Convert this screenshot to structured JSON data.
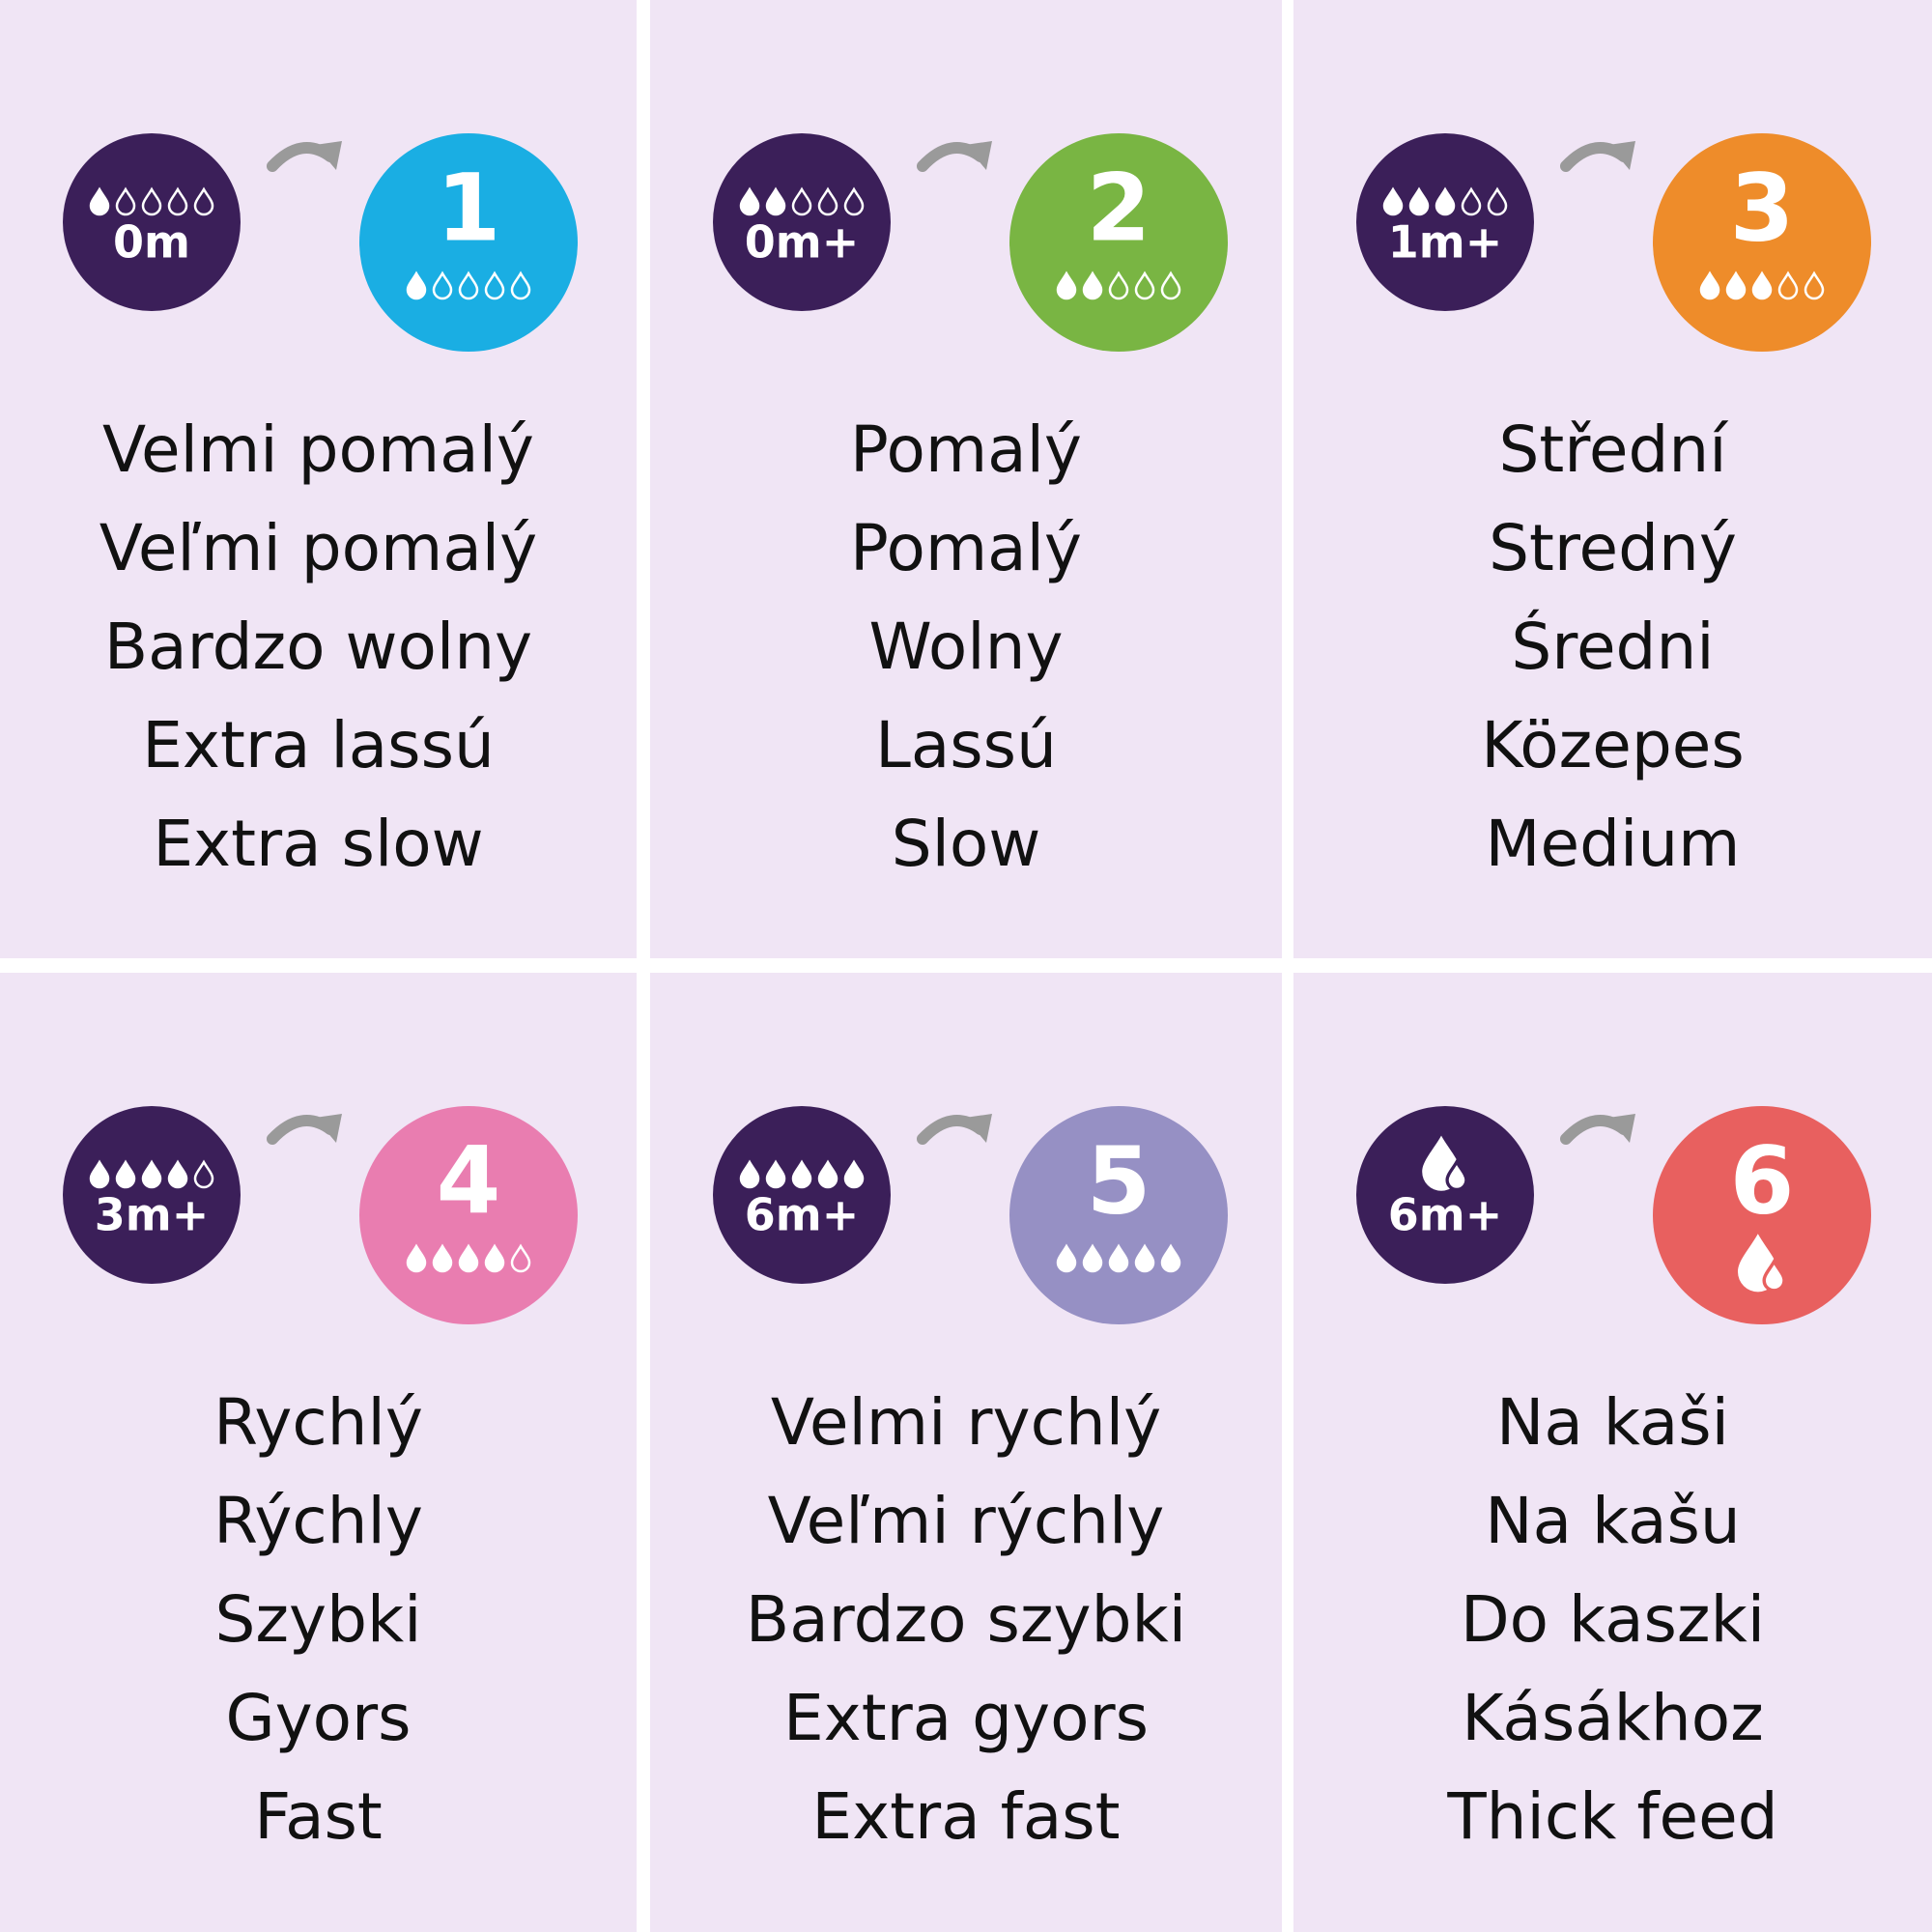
{
  "panels": [
    {
      "age": "0m",
      "number": "1",
      "color": "#1aaee3",
      "labels": [
        "Velmi pomalý",
        "Veľmi pomalý",
        "Bardzo wolny",
        "Extra lassú",
        "Extra slow"
      ]
    },
    {
      "age": "0m+",
      "number": "2",
      "color": "#79b543",
      "labels": [
        "Pomalý",
        "Pomalý",
        "Wolny",
        "Lassú",
        "Slow"
      ]
    },
    {
      "age": "1m+",
      "number": "3",
      "color": "#ee8c2a",
      "labels": [
        "Střední",
        "Stredný",
        "Średni",
        "Közepes",
        "Medium"
      ]
    },
    {
      "age": "3m+",
      "number": "4",
      "color": "#e97db0",
      "labels": [
        "Rychlý",
        "Rýchly",
        "Szybki",
        "Gyors",
        "Fast"
      ]
    },
    {
      "age": "6m+",
      "number": "5",
      "color": "#9690c4",
      "labels": [
        "Velmi rychlý",
        "Veľmi rýchly",
        "Bardzo szybki",
        "Extra gyors",
        "Extra fast"
      ]
    },
    {
      "age": "6m+",
      "number": "6",
      "color": "#e8605f",
      "labels": [
        "Na kaši",
        "Na kašu",
        "Do kaszki",
        "Kásákhoz",
        "Thick feed"
      ]
    }
  ]
}
